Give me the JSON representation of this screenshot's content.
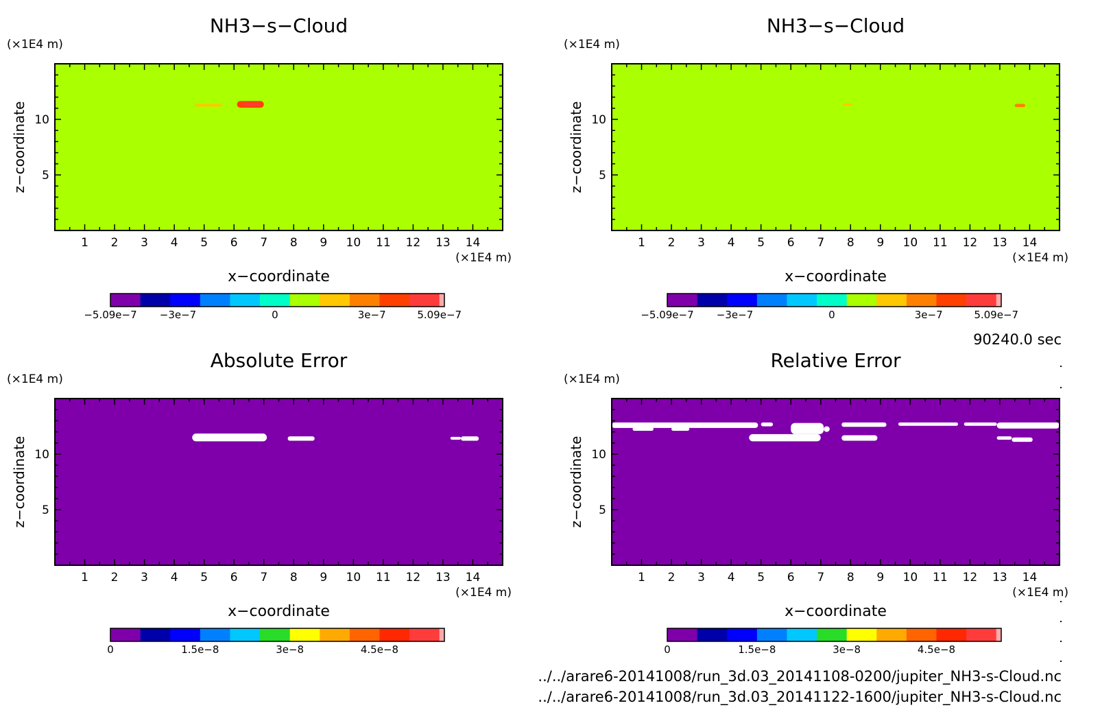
{
  "time_label": "90240.0 sec",
  "files": [
    "../../arare6-20141008/run_3d.03_20141108-0200/jupiter_NH3-s-Cloud.nc",
    "../../arare6-20141008/run_3d.03_20141122-1600/jupiter_NH3-s-Cloud.nc"
  ],
  "colors": {
    "cloud_bg": "#aaff00",
    "error_bg": "#7f00aa",
    "cloud_scale": [
      "#7f00aa",
      "#0000aa",
      "#0000ff",
      "#0080ff",
      "#00c8ff",
      "#00ffc8",
      "#aaff00",
      "#ffc800",
      "#ff8000",
      "#ff4000",
      "#ff3c3c",
      "#ffaaaa"
    ],
    "error_scale": [
      "#7f00aa",
      "#0000aa",
      "#0000ff",
      "#0080ff",
      "#00c8ff",
      "#28dc28",
      "#ffff00",
      "#ffaa00",
      "#ff6400",
      "#ff2800",
      "#ff3c3c",
      "#ffaaaa"
    ]
  },
  "chart_data": [
    {
      "type": "heatmap",
      "title": "NH3−s−Cloud",
      "xlabel": "x−coordinate",
      "ylabel": "z−coordinate",
      "x_unit": "(×1E4 m)",
      "y_unit": "(×1E4 m)",
      "xlim": [
        0,
        15
      ],
      "ylim": [
        0,
        15
      ],
      "x_ticks": [
        "1",
        "2",
        "3",
        "4",
        "5",
        "6",
        "7",
        "8",
        "9",
        "10",
        "11",
        "12",
        "13",
        "14"
      ],
      "y_ticks": [
        "5",
        "10"
      ],
      "background_value": 0,
      "colorbar": {
        "min": -5.09e-07,
        "max": 5.09e-07,
        "tick_labels": [
          "−5.09e−7",
          "−3e−7",
          "0",
          "3e−7",
          "5.09e−7"
        ],
        "tick_values": [
          -5.09e-07,
          -3e-07,
          0,
          3e-07,
          5.09e-07
        ]
      },
      "features": [
        {
          "x": [
            4.7,
            5.6
          ],
          "z": [
            11.15,
            11.4
          ],
          "value": 2e-07,
          "color": "#ffc800"
        },
        {
          "x": [
            6.1,
            7.0
          ],
          "z": [
            11.05,
            11.65
          ],
          "value": 3.8e-07,
          "color": "#ff4000"
        },
        {
          "x": [
            6.3,
            6.9
          ],
          "z": [
            11.2,
            11.5
          ],
          "value": 4.4e-07,
          "color": "#ff3c3c"
        }
      ]
    },
    {
      "type": "heatmap",
      "title": "NH3−s−Cloud",
      "xlabel": "x−coordinate",
      "ylabel": "z−coordinate",
      "x_unit": "(×1E4 m)",
      "y_unit": "(×1E4 m)",
      "xlim": [
        0,
        15
      ],
      "ylim": [
        0,
        15
      ],
      "x_ticks": [
        "1",
        "2",
        "3",
        "4",
        "5",
        "6",
        "7",
        "8",
        "9",
        "10",
        "11",
        "12",
        "13",
        "14"
      ],
      "y_ticks": [
        "5",
        "10"
      ],
      "background_value": 0,
      "colorbar": {
        "min": -5.09e-07,
        "max": 5.09e-07,
        "tick_labels": [
          "−5.09e−7",
          "−3e−7",
          "0",
          "3e−7",
          "5.09e−7"
        ],
        "tick_values": [
          -5.09e-07,
          -3e-07,
          0,
          3e-07,
          5.09e-07
        ]
      },
      "features": [
        {
          "x": [
            7.75,
            8.05
          ],
          "z": [
            11.2,
            11.45
          ],
          "value": 1.5e-07,
          "color": "#ffc800"
        },
        {
          "x": [
            13.5,
            13.85
          ],
          "z": [
            11.1,
            11.4
          ],
          "value": 3e-07,
          "color": "#ff8000"
        }
      ]
    },
    {
      "type": "heatmap",
      "title": "Absolute Error",
      "xlabel": "x−coordinate",
      "ylabel": "z−coordinate",
      "x_unit": "(×1E4 m)",
      "y_unit": "(×1E4 m)",
      "xlim": [
        0,
        15
      ],
      "ylim": [
        0,
        15
      ],
      "x_ticks": [
        "1",
        "2",
        "3",
        "4",
        "5",
        "6",
        "7",
        "8",
        "9",
        "10",
        "11",
        "12",
        "13",
        "14"
      ],
      "y_ticks": [
        "5",
        "10"
      ],
      "background_value": 0,
      "colorbar": {
        "min": 0,
        "max": 5.5e-08,
        "tick_labels": [
          "0",
          "1.5e−8",
          "3e−8",
          "4.5e−8"
        ],
        "tick_values": [
          0,
          1.5e-08,
          3e-08,
          4.5e-08
        ]
      },
      "features": [
        {
          "x": [
            4.6,
            7.1
          ],
          "z": [
            11.15,
            11.85
          ],
          "value": "above max",
          "color": "#ffffff"
        },
        {
          "x": [
            7.8,
            8.7
          ],
          "z": [
            11.2,
            11.6
          ],
          "value": "above max",
          "color": "#ffffff"
        },
        {
          "x": [
            13.25,
            13.6
          ],
          "z": [
            11.3,
            11.55
          ],
          "value": "above max",
          "color": "#ffffff"
        },
        {
          "x": [
            13.6,
            14.2
          ],
          "z": [
            11.2,
            11.6
          ],
          "value": "above max",
          "color": "#ffffff"
        }
      ]
    },
    {
      "type": "heatmap",
      "title": "Relative Error",
      "xlabel": "x−coordinate",
      "ylabel": "z−coordinate",
      "x_unit": "(×1E4 m)",
      "y_unit": "(×1E4 m)",
      "xlim": [
        0,
        15
      ],
      "ylim": [
        0,
        15
      ],
      "x_ticks": [
        "1",
        "2",
        "3",
        "4",
        "5",
        "6",
        "7",
        "8",
        "9",
        "10",
        "11",
        "12",
        "13",
        "14"
      ],
      "y_ticks": [
        "5",
        "10"
      ],
      "background_value": 0,
      "colorbar": {
        "min": 0,
        "max": 5.5e-08,
        "tick_labels": [
          "0",
          "1.5e−8",
          "3e−8",
          "4.5e−8"
        ],
        "tick_values": [
          0,
          1.5e-08,
          3e-08,
          4.5e-08
        ]
      },
      "features": [
        {
          "x": [
            0.0,
            4.9
          ],
          "z": [
            12.35,
            12.85
          ],
          "value": "above max",
          "color": "#ffffff"
        },
        {
          "x": [
            0.7,
            1.4
          ],
          "z": [
            12.1,
            12.4
          ],
          "value": "above max",
          "color": "#ffffff"
        },
        {
          "x": [
            2.0,
            2.6
          ],
          "z": [
            12.1,
            12.4
          ],
          "value": "above max",
          "color": "#ffffff"
        },
        {
          "x": [
            5.0,
            5.4
          ],
          "z": [
            12.5,
            12.85
          ],
          "value": "above max",
          "color": "#ffffff"
        },
        {
          "x": [
            4.6,
            7.0
          ],
          "z": [
            11.15,
            11.8
          ],
          "value": "above max",
          "color": "#ffffff"
        },
        {
          "x": [
            6.0,
            7.1
          ],
          "z": [
            11.8,
            12.8
          ],
          "value": "above max",
          "color": "#ffffff"
        },
        {
          "x": [
            7.1,
            7.3
          ],
          "z": [
            12.0,
            12.5
          ],
          "value": "above max",
          "color": "#ffffff"
        },
        {
          "x": [
            7.7,
            9.2
          ],
          "z": [
            12.45,
            12.85
          ],
          "value": "above max",
          "color": "#ffffff"
        },
        {
          "x": [
            7.7,
            8.9
          ],
          "z": [
            11.2,
            11.7
          ],
          "value": "above max",
          "color": "#ffffff"
        },
        {
          "x": [
            9.6,
            11.6
          ],
          "z": [
            12.55,
            12.85
          ],
          "value": "above max",
          "color": "#ffffff"
        },
        {
          "x": [
            11.8,
            12.9
          ],
          "z": [
            12.55,
            12.85
          ],
          "value": "above max",
          "color": "#ffffff"
        },
        {
          "x": [
            12.9,
            15.0
          ],
          "z": [
            12.3,
            12.85
          ],
          "value": "above max",
          "color": "#ffffff"
        },
        {
          "x": [
            12.9,
            13.4
          ],
          "z": [
            11.3,
            11.6
          ],
          "value": "above max",
          "color": "#ffffff"
        },
        {
          "x": [
            13.4,
            14.1
          ],
          "z": [
            11.1,
            11.5
          ],
          "value": "above max",
          "color": "#ffffff"
        }
      ]
    }
  ]
}
